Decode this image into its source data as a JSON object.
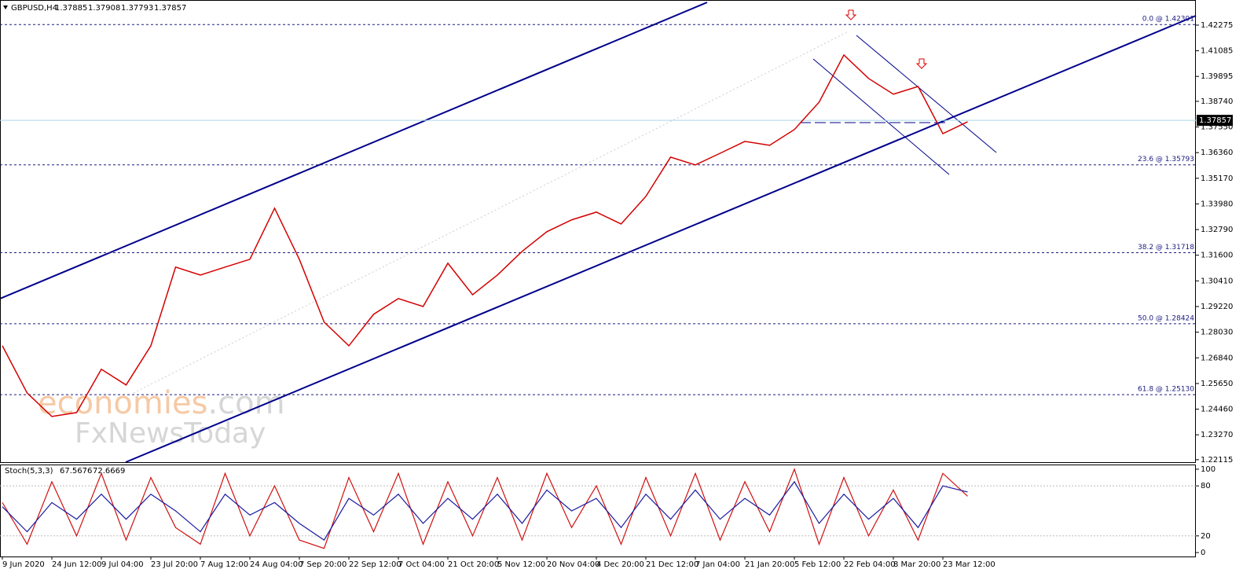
{
  "header": {
    "symbol": "GBPUSD,H4",
    "quote": [
      1.37885,
      1.37908,
      1.37793,
      1.37857
    ]
  },
  "watermark": {
    "brand": "economies",
    "domain": ".com",
    "line2": "FxNewsToday"
  },
  "chart_data": [
    {
      "type": "line",
      "categories": [
        "9 Jun 2020",
        null,
        "24 Jun 12:00",
        null,
        "9 Jul 04:00",
        null,
        "23 Jul 20:00",
        null,
        "7 Aug 12:00",
        null,
        "24 Aug 04:00",
        null,
        "7 Sep 20:00",
        null,
        "22 Sep 12:00",
        null,
        "7 Oct 04:00",
        null,
        "21 Oct 20:00",
        null,
        "5 Nov 12:00",
        null,
        "20 Nov 04:00",
        null,
        "4 Dec 20:00",
        null,
        "21 Dec 12:00",
        null,
        "7 Jan 04:00",
        null,
        "21 Jan 20:00",
        null,
        "5 Feb 12:00",
        null,
        "22 Feb 04:00",
        null,
        "8 Mar 20:00",
        null,
        "23 Mar 12:00",
        null
      ],
      "series": [
        {
          "color": "#d40000",
          "values": [
            1.274,
            1.2521,
            1.2412,
            1.243,
            1.2631,
            1.2558,
            1.274,
            1.3105,
            1.3068,
            1.3105,
            1.3141,
            1.3378,
            1.3141,
            1.285,
            1.274,
            1.2886,
            1.2959,
            1.2922,
            1.3123,
            1.2977,
            1.3068,
            1.3178,
            1.3269,
            1.3324,
            1.336,
            1.3305,
            1.3433,
            1.3615,
            1.3579,
            1.3633,
            1.3688,
            1.367,
            1.3743,
            1.387,
            1.4089,
            1.398,
            1.3907,
            1.3943,
            1.3724,
            1.3779
          ]
        }
      ],
      "ylim": [
        1.22,
        1.4344
      ],
      "yticks": [
        1.22115,
        {
          "value": 1.2327,
          "label": "1.23270"
        },
        {
          "value": 1.2446,
          "label": "1.24460"
        },
        {
          "value": 1.2565,
          "label": "1.25650"
        },
        {
          "value": 1.2684,
          "label": "1.26840"
        },
        {
          "value": 1.2803,
          "label": "1.28030"
        },
        {
          "value": 1.2922,
          "label": "1.29220"
        },
        {
          "value": 1.3041,
          "label": "1.30410"
        },
        {
          "value": 1.316,
          "label": "1.31600"
        },
        {
          "value": 1.3279,
          "label": "1.32790"
        },
        {
          "value": 1.3398,
          "label": "1.33980"
        },
        {
          "value": 1.3517,
          "label": "1.35170"
        },
        {
          "value": 1.3636,
          "label": "1.36360"
        },
        {
          "value": 1.3755,
          "label": "1.37550"
        },
        {
          "value": 1.3874,
          "label": "1.38740"
        },
        1.39895,
        1.41085,
        1.42275
      ],
      "fib_levels": [
        {
          "value": 1.42301,
          "label": "0.0 @ 1.42301"
        },
        {
          "value": 1.35793,
          "label": "23.6 @ 1.35793"
        },
        {
          "value": 1.31718,
          "label": "38.2 @ 1.31718"
        },
        {
          "value": 1.28424,
          "label": "50.0 @ 1.28424"
        },
        {
          "value": 1.2513,
          "label": "61.8 @ 1.25130"
        }
      ]
    },
    {
      "type": "line",
      "title": "Stoch(5,3,3)",
      "series": [
        {
          "color": "#d01010",
          "values": [
            60,
            10,
            85,
            20,
            95,
            15,
            90,
            30,
            10,
            95,
            20,
            80,
            15,
            5,
            90,
            25,
            95,
            10,
            85,
            20,
            90,
            15,
            95,
            30,
            80,
            10,
            90,
            20,
            95,
            15,
            85,
            25,
            100,
            10,
            90,
            20,
            75,
            15,
            95,
            67.5676
          ]
        },
        {
          "color": "#1a1aa0",
          "values": [
            55,
            25,
            60,
            40,
            70,
            40,
            70,
            50,
            25,
            70,
            45,
            60,
            35,
            15,
            65,
            45,
            70,
            35,
            65,
            40,
            70,
            35,
            75,
            50,
            65,
            30,
            70,
            40,
            75,
            40,
            65,
            45,
            85,
            35,
            70,
            40,
            65,
            30,
            80,
            72.6669
          ]
        }
      ],
      "ylim": [
        -4.7,
        105.6
      ],
      "yticks": [
        0,
        20,
        80,
        100
      ],
      "level_lines": [
        20,
        80
      ]
    }
  ]
}
